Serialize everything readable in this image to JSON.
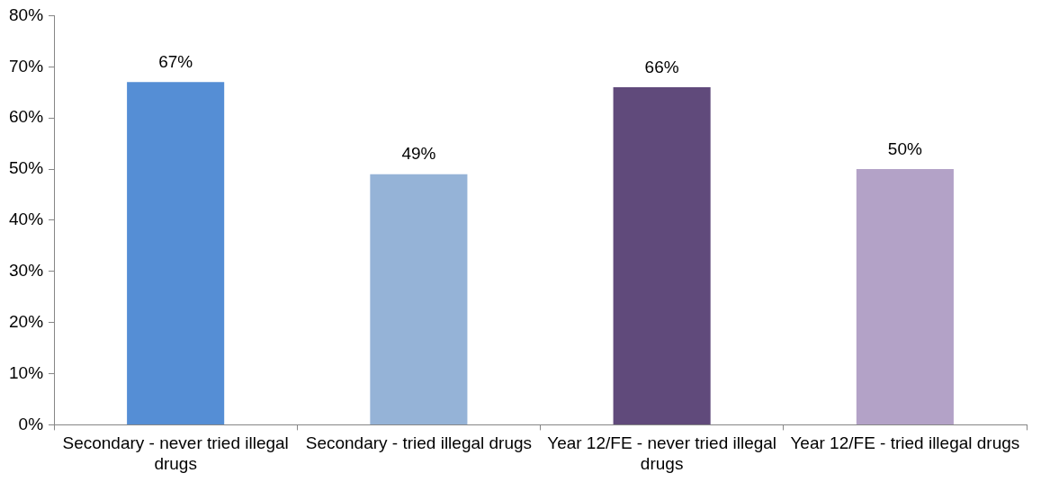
{
  "chart_data": {
    "type": "bar",
    "categories": [
      "Secondary - never tried illegal drugs",
      "Secondary - tried illegal drugs",
      "Year 12/FE - never tried illegal drugs",
      "Year 12/FE - tried illegal drugs"
    ],
    "values": [
      67,
      49,
      66,
      50
    ],
    "colors": [
      "#558ed5",
      "#95b3d7",
      "#604a7b",
      "#b3a2c7"
    ],
    "value_labels": [
      "67%",
      "49%",
      "66%",
      "50%"
    ],
    "ylim": [
      0,
      80
    ],
    "yticks": [
      {
        "value": 0,
        "label": "0%"
      },
      {
        "value": 10,
        "label": "10%"
      },
      {
        "value": 20,
        "label": "20%"
      },
      {
        "value": 30,
        "label": "30%"
      },
      {
        "value": 40,
        "label": "40%"
      },
      {
        "value": 50,
        "label": "50%"
      },
      {
        "value": 60,
        "label": "60%"
      },
      {
        "value": 70,
        "label": "70%"
      },
      {
        "value": 80,
        "label": "80%"
      }
    ],
    "grid": false,
    "legend": false
  }
}
